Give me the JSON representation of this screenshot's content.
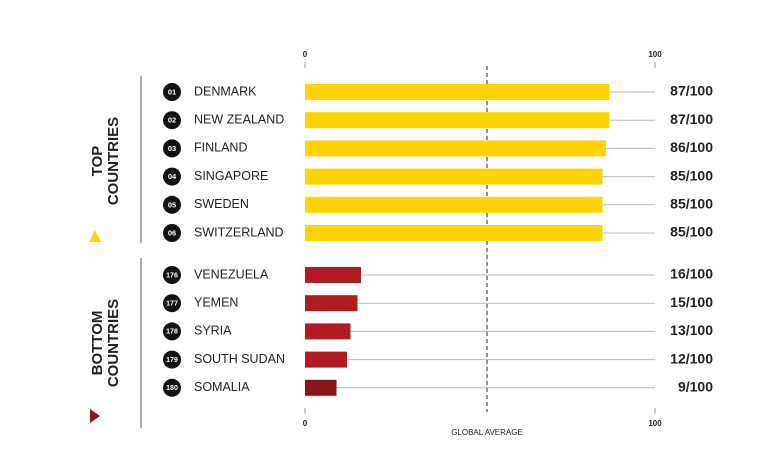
{
  "chart_data": {
    "type": "bar",
    "xlim": [
      0,
      100
    ],
    "xticks": [
      0,
      100
    ],
    "global_average": {
      "label": "GLOBAL AVERAGE",
      "value": 52
    },
    "groups": [
      {
        "name": [
          "TOP",
          "COUNTRIES"
        ],
        "marker_color": "#ffd400",
        "ranks": [
          "01",
          "02",
          "03",
          "04",
          "05",
          "06"
        ],
        "categories": [
          "DENMARK",
          "NEW ZEALAND",
          "FINLAND",
          "SINGAPORE",
          "SWEDEN",
          "SWITZERLAND"
        ],
        "values": [
          87,
          87,
          86,
          85,
          85,
          85
        ],
        "value_labels": [
          "87/100",
          "87/100",
          "86/100",
          "85/100",
          "85/100",
          "85/100"
        ],
        "colors": [
          "#ffd400",
          "#ffd400",
          "#ffd400",
          "#ffd400",
          "#ffd400",
          "#ffd400"
        ]
      },
      {
        "name": [
          "BOTTOM",
          "COUNTRIES"
        ],
        "marker_color": "#8b1414",
        "ranks": [
          "176",
          "177",
          "178",
          "179",
          "180"
        ],
        "categories": [
          "VENEZUELA",
          "YEMEN",
          "SYRIA",
          "SOUTH SUDAN",
          "SOMALIA"
        ],
        "values": [
          16,
          15,
          13,
          12,
          9
        ],
        "value_labels": [
          "16/100",
          "15/100",
          "13/100",
          "12/100",
          "9/100"
        ],
        "colors": [
          "#b01c22",
          "#b01c22",
          "#b01c22",
          "#b01c22",
          "#8b1414"
        ]
      }
    ]
  }
}
